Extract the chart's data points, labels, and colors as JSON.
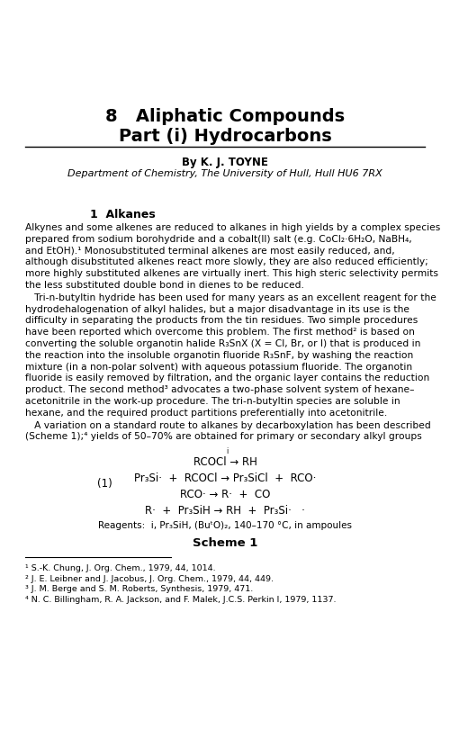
{
  "bg_color": "#ffffff",
  "title_line1": "8   Aliphatic Compounds",
  "title_line2": "Part (i) Hydrocarbons",
  "author_line": "By K. J. TOYNE",
  "dept_line": "Department of Chemistry, The University of Hull, Hull HU6 7RX",
  "section_heading": "1  Alkanes",
  "para1_lines": [
    "Alkynes and some alkenes are reduced to alkanes in high yields by a complex species",
    "prepared from sodium borohydride and a cobalt(II) salt (e.g. CoCl₂·6H₂O, NaBH₄,",
    "and EtOH).¹ Monosubstituted terminal alkenes are most easily reduced, and,",
    "although disubstituted alkenes react more slowly, they are also reduced efficiently;",
    "more highly substituted alkenes are virtually inert. This high steric selectivity permits",
    "the less substituted double bond in dienes to be reduced."
  ],
  "para2_lines": [
    "   Tri-n-butyltin hydride has been used for many years as an excellent reagent for the",
    "hydrodehalogenation of alkyl halides, but a major disadvantage in its use is the",
    "difficulty in separating the products from the tin residues. Two simple procedures",
    "have been reported which overcome this problem. The first method² is based on",
    "converting the soluble organotin halide R₃SnX (X = Cl, Br, or I) that is produced in",
    "the reaction into the insoluble organotin fluoride R₃SnF, by washing the reaction",
    "mixture (in a non-polar solvent) with aqueous potassium fluoride. The organotin",
    "fluoride is easily removed by filtration, and the organic layer contains the reduction",
    "product. The second method³ advocates a two-phase solvent system of hexane–",
    "acetonitrile in the work-up procedure. The tri-n-butyltin species are soluble in",
    "hexane, and the required product partitions preferentially into acetonitrile."
  ],
  "para3_lines": [
    "   A variation on a standard route to alkanes by decarboxylation has been described",
    "(Scheme 1);⁴ yields of 50–70% are obtained for primary or secondary alkyl groups"
  ],
  "scheme_line1": "RCOCl → RH",
  "scheme_arrow_label": "i",
  "scheme_line2": "Pr₃Si·  +  RCOCl → Pr₃SiCl  +  RCO·",
  "scheme_label1": "(1)",
  "scheme_line3": "RCO· → R·  +  CO",
  "scheme_line4": "R·  +  Pr₃SiH → RH  +  Pr₃Si·   ·",
  "scheme_reagents": "Reagents:  i, Pr₃SiH, (BuᵗO)₂, 140–170 °C, in ampoules",
  "scheme_title": "Scheme 1",
  "footnote1": "¹ S.-K. Chung, J. Org. Chem., 1979, 44, 1014.",
  "footnote2": "² J. E. Leibner and J. Jacobus, J. Org. Chem., 1979, 44, 449.",
  "footnote3": "³ J. M. Berge and S. M. Roberts, Synthesis, 1979, 471.",
  "footnote4": "⁴ N. C. Billingham, R. A. Jackson, and F. Malek, J.C.S. Perkin I, 1979, 1137.",
  "fig_width": 5.0,
  "fig_height": 8.1,
  "dpi": 100
}
